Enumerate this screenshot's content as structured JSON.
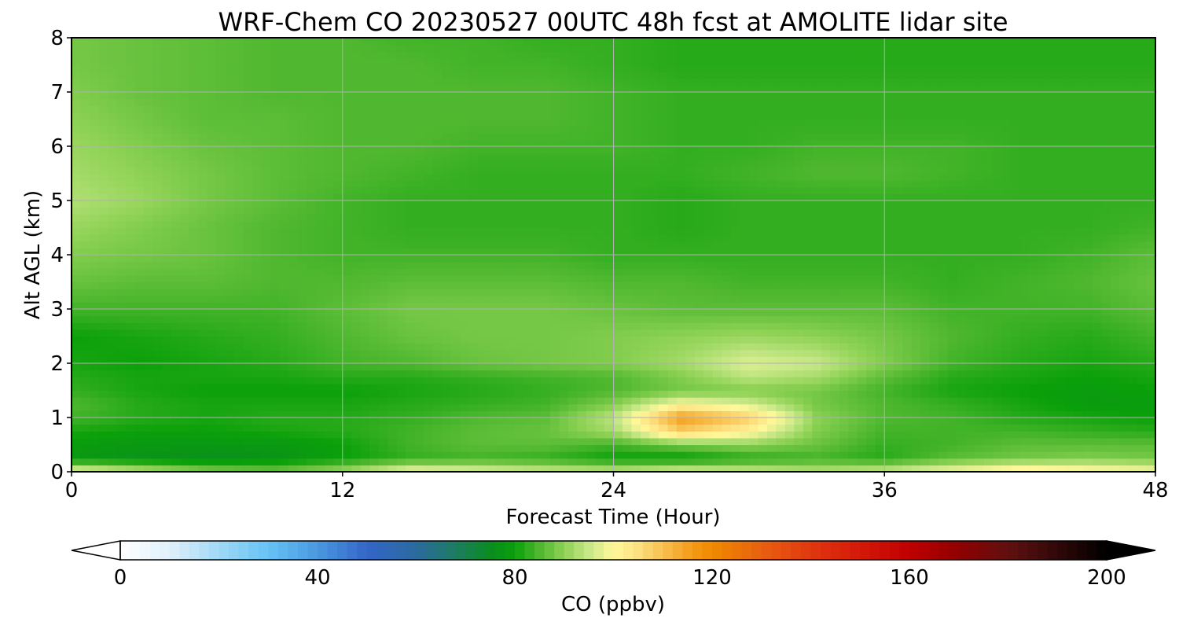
{
  "chart_data": {
    "type": "heatmap",
    "title": "WRF-Chem CO  20230527 00UTC 48h fcst at AMOLITE lidar site",
    "xlabel": "Forecast Time (Hour)",
    "ylabel": "Alt AGL (km)",
    "xlim": [
      0,
      48
    ],
    "ylim": [
      0,
      8
    ],
    "x_ticks": [
      "0",
      "12",
      "24",
      "36",
      "48"
    ],
    "y_ticks": [
      "0",
      "1",
      "2",
      "3",
      "4",
      "5",
      "6",
      "7",
      "8"
    ],
    "grid": true,
    "x": [
      0,
      3,
      6,
      9,
      12,
      15,
      18,
      21,
      24,
      27,
      30,
      33,
      36,
      39,
      42,
      45,
      48
    ],
    "y": [
      0,
      0.25,
      0.5,
      0.75,
      1,
      1.25,
      1.5,
      1.75,
      2,
      2.5,
      3,
      3.5,
      4,
      4.5,
      5,
      5.5,
      6,
      6.5,
      7,
      7.5,
      8
    ],
    "z": [
      [
        100,
        95,
        90,
        88,
        92,
        100,
        98,
        96,
        95,
        98,
        96,
        94,
        96,
        100,
        104,
        102,
        100
      ],
      [
        78,
        77,
        76,
        77,
        80,
        83,
        84,
        83,
        80,
        79,
        82,
        84,
        82,
        86,
        88,
        89,
        88
      ],
      [
        79,
        78,
        78,
        78,
        80,
        84,
        86,
        86,
        84,
        88,
        90,
        87,
        83,
        84,
        86,
        86,
        86
      ],
      [
        81,
        80,
        80,
        81,
        82,
        84,
        86,
        87,
        92,
        108,
        101,
        89,
        84,
        84,
        84,
        83,
        82
      ],
      [
        84,
        82,
        81,
        82,
        82,
        83,
        85,
        86,
        94,
        116,
        108,
        90,
        85,
        84,
        82,
        81,
        80
      ],
      [
        85,
        82,
        81,
        81,
        81,
        82,
        83,
        84,
        89,
        100,
        96,
        88,
        85,
        83,
        81,
        79,
        79
      ],
      [
        83,
        81,
        80,
        80,
        80,
        81,
        82,
        83,
        85,
        88,
        89,
        88,
        84,
        81,
        80,
        79,
        80
      ],
      [
        82,
        81,
        81,
        81,
        82,
        82,
        83,
        84,
        85,
        89,
        94,
        92,
        86,
        82,
        81,
        80,
        81
      ],
      [
        81,
        80,
        81,
        82,
        84,
        85,
        87,
        88,
        89,
        92,
        97,
        95,
        89,
        84,
        82,
        81,
        82
      ],
      [
        80,
        81,
        82,
        83,
        85,
        87,
        88,
        88,
        89,
        90,
        91,
        90,
        88,
        85,
        83,
        82,
        84
      ],
      [
        84,
        84,
        84,
        84,
        86,
        88,
        88,
        88,
        87,
        86,
        86,
        86,
        86,
        84,
        84,
        84,
        86
      ],
      [
        87,
        86,
        86,
        85,
        85,
        86,
        86,
        86,
        85,
        85,
        84,
        84,
        84,
        83,
        84,
        85,
        87
      ],
      [
        89,
        88,
        87,
        85,
        84,
        84,
        84,
        84,
        83,
        83,
        83,
        83,
        83,
        83,
        83,
        84,
        86
      ],
      [
        91,
        89,
        87,
        85,
        84,
        83,
        83,
        83,
        83,
        82,
        83,
        83,
        83,
        83,
        83,
        83,
        84
      ],
      [
        93,
        91,
        88,
        86,
        84,
        83,
        83,
        83,
        83,
        82,
        83,
        83,
        83,
        83,
        83,
        83,
        83
      ],
      [
        92,
        90,
        88,
        86,
        85,
        84,
        83,
        83,
        83,
        83,
        84,
        85,
        85,
        84,
        83,
        83,
        83
      ],
      [
        91,
        89,
        87,
        86,
        85,
        85,
        84,
        84,
        84,
        83,
        83,
        84,
        84,
        84,
        83,
        83,
        83
      ],
      [
        90,
        88,
        86,
        86,
        85,
        85,
        85,
        85,
        84,
        83,
        83,
        83,
        83,
        83,
        83,
        83,
        83
      ],
      [
        89,
        87,
        86,
        85,
        85,
        85,
        85,
        85,
        84,
        83,
        83,
        83,
        83,
        83,
        83,
        83,
        83
      ],
      [
        88,
        87,
        86,
        85,
        85,
        85,
        84,
        84,
        83,
        82,
        82,
        82,
        82,
        82,
        82,
        82,
        82
      ],
      [
        88,
        87,
        86,
        85,
        85,
        84,
        84,
        83,
        83,
        82,
        82,
        82,
        82,
        82,
        82,
        82,
        82
      ]
    ],
    "colorbar": {
      "label": "CO  (ppbv)",
      "min": 0,
      "max": 200,
      "ticks": [
        "0",
        "40",
        "80",
        "120",
        "160",
        "200"
      ],
      "extend": "both",
      "colormap": [
        [
          0,
          "#ffffff"
        ],
        [
          10,
          "#e0f0fa"
        ],
        [
          20,
          "#a0d8f5"
        ],
        [
          30,
          "#66c3f5"
        ],
        [
          40,
          "#4a98e0"
        ],
        [
          50,
          "#3466c8"
        ],
        [
          60,
          "#2a6a9e"
        ],
        [
          67,
          "#1f7a6a"
        ],
        [
          75,
          "#0a8c20"
        ],
        [
          80,
          "#0aa00a"
        ],
        [
          85,
          "#50b830"
        ],
        [
          90,
          "#8ed255"
        ],
        [
          95,
          "#c8e888"
        ],
        [
          100,
          "#fff89a"
        ],
        [
          105,
          "#fde080"
        ],
        [
          110,
          "#f8c050"
        ],
        [
          115,
          "#f5a020"
        ],
        [
          120,
          "#f08a00"
        ],
        [
          130,
          "#e86010"
        ],
        [
          140,
          "#e03810"
        ],
        [
          150,
          "#d41808"
        ],
        [
          160,
          "#c00000"
        ],
        [
          170,
          "#900000"
        ],
        [
          180,
          "#601010"
        ],
        [
          190,
          "#300808"
        ],
        [
          200,
          "#000000"
        ]
      ]
    }
  }
}
